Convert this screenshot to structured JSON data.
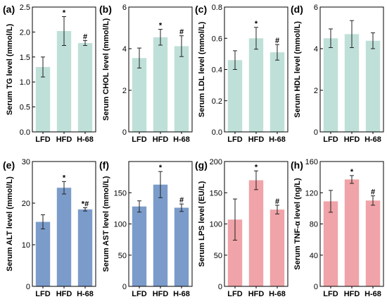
{
  "colors": {
    "green": "#bfe0d8",
    "blue": "#7b9cca",
    "pink": "#f0a3a8",
    "axis": "#000000",
    "error": "#222222"
  },
  "chart_data": [
    {
      "type": "bar",
      "label": "(a)",
      "ylabel": "Serum TG level (mmol/L)",
      "categories": [
        "LFD",
        "HFD",
        "H-68"
      ],
      "values": [
        1.3,
        2.02,
        1.78
      ],
      "errors": [
        0.2,
        0.29,
        0.05
      ],
      "significance": [
        "",
        "*",
        "#"
      ],
      "ylim": [
        0.0,
        2.5
      ],
      "yticks": [
        "0.0",
        "0.5",
        "1.0",
        "1.5",
        "2.0",
        "2.5"
      ],
      "color": "green"
    },
    {
      "type": "bar",
      "label": "(b)",
      "ylabel": "Serum CHOL level (mmol/L)",
      "categories": [
        "LFD",
        "HFD",
        "H-68"
      ],
      "values": [
        3.55,
        4.55,
        4.12
      ],
      "errors": [
        0.48,
        0.38,
        0.5
      ],
      "significance": [
        "",
        "*",
        "#"
      ],
      "ylim": [
        0,
        6
      ],
      "yticks": [
        "0",
        "2",
        "4",
        "6"
      ],
      "color": "green"
    },
    {
      "type": "bar",
      "label": "(c)",
      "ylabel": "Serum LDL level (mmol/L)",
      "categories": [
        "LFD",
        "HFD",
        "H-68"
      ],
      "values": [
        0.46,
        0.6,
        0.51
      ],
      "errors": [
        0.06,
        0.07,
        0.05
      ],
      "significance": [
        "",
        "*",
        "#"
      ],
      "ylim": [
        0.0,
        0.8
      ],
      "yticks": [
        "0.0",
        "0.2",
        "0.4",
        "0.6",
        "0.8"
      ],
      "color": "green"
    },
    {
      "type": "bar",
      "label": "(d)",
      "ylabel": "Serum HDL level (mmol/L)",
      "categories": [
        "LFD",
        "HFD",
        "H-68"
      ],
      "values": [
        4.5,
        4.7,
        4.38
      ],
      "errors": [
        0.45,
        0.65,
        0.38
      ],
      "significance": [
        "",
        "",
        ""
      ],
      "ylim": [
        0,
        6
      ],
      "yticks": [
        "0",
        "2",
        "4",
        "6"
      ],
      "color": "green"
    },
    {
      "type": "bar",
      "label": "(e)",
      "ylabel": "Serum ALT level (mmol/L)",
      "categories": [
        "LFD",
        "HFD",
        "H-68"
      ],
      "values": [
        15.5,
        23.7,
        18.5
      ],
      "errors": [
        1.7,
        1.5,
        0.4
      ],
      "significance": [
        "",
        "*",
        "*#"
      ],
      "ylim": [
        0,
        30
      ],
      "yticks": [
        "0",
        "10",
        "20",
        "30"
      ],
      "color": "blue"
    },
    {
      "type": "bar",
      "label": "(f)",
      "ylabel": "Serum AST level (mmol/L)",
      "categories": [
        "LFD",
        "HFD",
        "H-68"
      ],
      "values": [
        128,
        163,
        126
      ],
      "errors": [
        9,
        21,
        6
      ],
      "significance": [
        "",
        "*",
        "#"
      ],
      "ylim": [
        0,
        200
      ],
      "yticks": [
        "0",
        "50",
        "100",
        "150"
      ],
      "color": "blue"
    },
    {
      "type": "bar",
      "label": "(g)",
      "ylabel": "Serum LPS level (EU/L)",
      "categories": [
        "LFD",
        "HFD",
        "H-68"
      ],
      "values": [
        107,
        170,
        123
      ],
      "errors": [
        33,
        15,
        7
      ],
      "significance": [
        "",
        "*",
        "#"
      ],
      "ylim": [
        0,
        200
      ],
      "yticks": [
        "0",
        "50",
        "100",
        "150",
        "200"
      ],
      "color": "pink"
    },
    {
      "type": "bar",
      "label": "(h)",
      "ylabel": "Serum TNF-α level (ng/L)",
      "categories": [
        "LFD",
        "HFD",
        "H-68"
      ],
      "values": [
        109,
        137,
        110
      ],
      "errors": [
        14,
        5,
        6
      ],
      "significance": [
        "",
        "*",
        "#"
      ],
      "ylim": [
        0,
        160
      ],
      "yticks": [
        "0",
        "40",
        "80",
        "120",
        "160"
      ],
      "color": "pink"
    }
  ]
}
